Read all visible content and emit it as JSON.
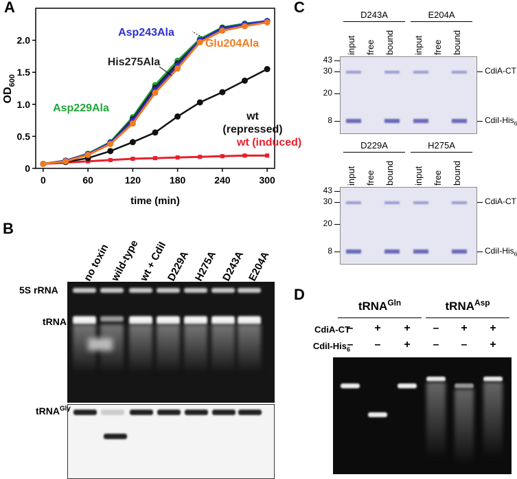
{
  "panel_labels": [
    "A",
    "B",
    "C",
    "D"
  ],
  "chart_data": {
    "type": "line",
    "xlabel": "time (min)",
    "ylabel": "OD",
    "ylabel_sub": "600",
    "x": [
      0,
      30,
      60,
      90,
      120,
      150,
      180,
      210,
      240,
      270,
      300
    ],
    "xlim": [
      -10,
      310
    ],
    "xticks": [
      0,
      60,
      120,
      180,
      240,
      300
    ],
    "ylim": [
      0,
      2.5
    ],
    "yticks": [
      0,
      0.5,
      {
        "value": 1,
        "label": "1.0"
      },
      1.5,
      {
        "value": 2,
        "label": "2.0"
      }
    ],
    "series": [
      {
        "name": "wt (induced)",
        "color": "#e8202a",
        "marker": "square",
        "values": [
          0.07,
          0.09,
          0.11,
          0.13,
          0.15,
          0.16,
          0.17,
          0.18,
          0.19,
          0.2,
          0.2
        ]
      },
      {
        "name": "wt (repressed)",
        "color": "#111111",
        "marker": "circle",
        "values": [
          0.07,
          0.1,
          0.16,
          0.27,
          0.41,
          0.56,
          0.81,
          1.03,
          1.19,
          1.37,
          1.55
        ]
      },
      {
        "name": "Asp229Ala",
        "color": "#1fa637",
        "marker": "circle",
        "values": [
          0.07,
          0.12,
          0.23,
          0.41,
          0.8,
          1.3,
          1.68,
          2.02,
          2.2,
          2.26,
          2.3
        ]
      },
      {
        "name": "His275Ala",
        "color": "#222222",
        "marker": "circle",
        "values": [
          0.07,
          0.12,
          0.22,
          0.4,
          0.77,
          1.26,
          1.64,
          2.0,
          2.19,
          2.25,
          2.3
        ]
      },
      {
        "name": "Asp243Ala",
        "color": "#2b2fd6",
        "marker": "circle",
        "values": [
          0.07,
          0.12,
          0.22,
          0.4,
          0.74,
          1.22,
          1.6,
          2.0,
          2.18,
          2.25,
          2.3
        ]
      },
      {
        "name": "Glu204Ala",
        "color": "#f07c22",
        "marker": "circle",
        "values": [
          0.07,
          0.11,
          0.21,
          0.38,
          0.7,
          1.18,
          1.56,
          1.97,
          2.15,
          2.22,
          2.28
        ]
      }
    ]
  },
  "panel_b": {
    "lanes": [
      "no toxin",
      "wild-type",
      "wt + CdiI",
      "D229A",
      "H275A",
      "D243A",
      "E204A"
    ],
    "band_labels": [
      "5S rRNA",
      "tRNA"
    ],
    "probe_label": {
      "text": "tRNA",
      "sup": "Gly"
    }
  },
  "panel_c": {
    "gels": [
      {
        "groups": [
          "D243A",
          "E204A"
        ]
      },
      {
        "groups": [
          "D229A",
          "H275A"
        ]
      }
    ],
    "lane_labels": [
      "input",
      "free",
      "bound"
    ],
    "markers": [
      "43",
      "30",
      "20",
      "8"
    ],
    "band_labels": [
      "CdiA-CT",
      {
        "text": "CdiI-His",
        "sub": "6"
      }
    ]
  },
  "panel_d": {
    "groups": [
      {
        "text": "tRNA",
        "sup": "Gln"
      },
      {
        "text": "tRNA",
        "sup": "Asp"
      }
    ],
    "rows": [
      {
        "label": "CdiA-CT",
        "signs": [
          "–",
          "+",
          "+",
          "–",
          "+",
          "+"
        ]
      },
      {
        "label": {
          "text": "CdiI-His",
          "sub": "6"
        },
        "signs": [
          "–",
          "–",
          "+",
          "–",
          "–",
          "+"
        ]
      }
    ]
  }
}
